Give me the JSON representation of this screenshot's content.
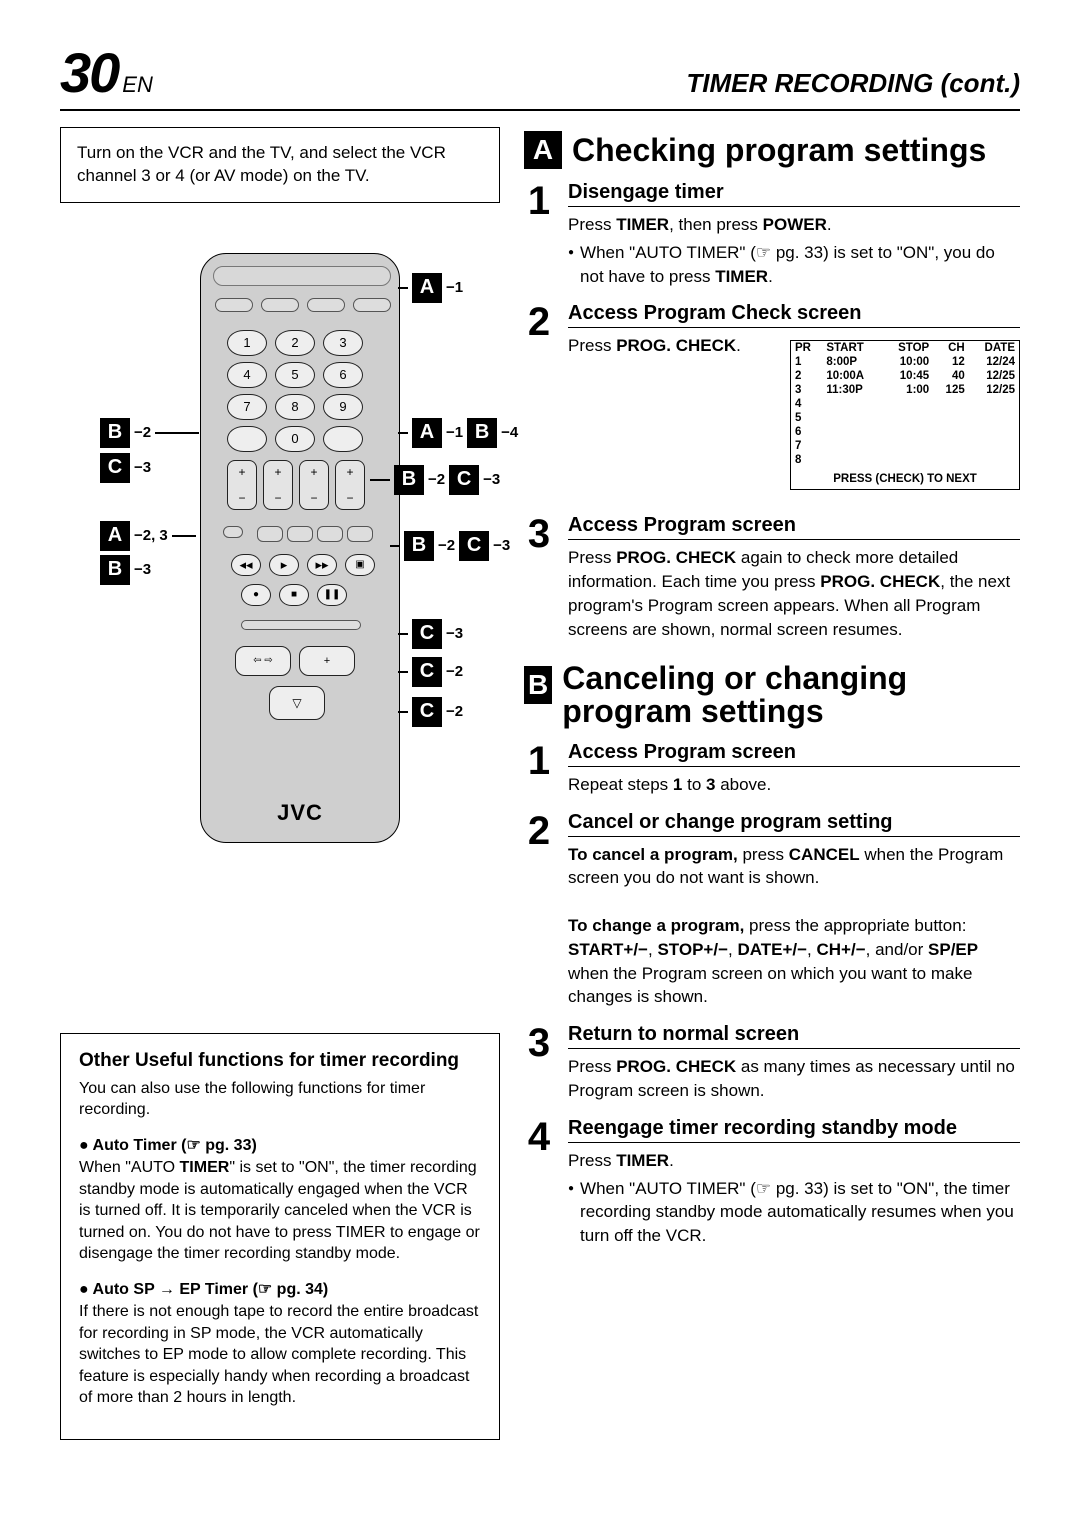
{
  "header": {
    "page_num": "30",
    "page_suffix": "EN",
    "section_title": "TIMER RECORDING (cont.)"
  },
  "intro_box": "Turn on the VCR and the TV, and select the VCR channel 3 or 4 (or AV mode) on the TV.",
  "remote": {
    "brand": "JVC",
    "callouts_left": [
      {
        "letter": "B",
        "sub": "−2"
      },
      {
        "letter": "C",
        "sub": "−3"
      },
      {
        "letter": "A",
        "sub": "−2, 3"
      },
      {
        "letter": "B",
        "sub": "−3"
      }
    ],
    "callouts_right": [
      {
        "pairs": [
          [
            "A",
            "−1"
          ]
        ]
      },
      {
        "pairs": [
          [
            "A",
            "−1"
          ],
          [
            "B",
            "−4"
          ]
        ]
      },
      {
        "pairs": [
          [
            "B",
            "−2"
          ],
          [
            "C",
            "−3"
          ]
        ]
      },
      {
        "pairs": [
          [
            "B",
            "−2"
          ],
          [
            "C",
            "−3"
          ]
        ]
      },
      {
        "pairs": [
          [
            "C",
            "−3"
          ]
        ]
      },
      {
        "pairs": [
          [
            "C",
            "−2"
          ]
        ]
      },
      {
        "pairs": [
          [
            "C",
            "−2"
          ]
        ]
      }
    ]
  },
  "useful_box": {
    "title": "Other Useful functions for timer recording",
    "intro": "You can also use the following functions for timer recording.",
    "items": [
      {
        "title": "● Auto Timer (☞ pg. 33)",
        "body": "When \"AUTO TIMER\" is set to \"ON\", the timer recording standby mode is automatically engaged when the VCR is turned off. It is temporarily canceled when the VCR is turned on. You do not have to press TIMER to engage or disengage the timer recording standby mode."
      },
      {
        "title": "● Auto SP → EP Timer (☞ pg. 34)",
        "body": "If there is not enough tape to record the entire broadcast for recording in SP mode, the VCR automatically switches to EP mode to allow complete recording. This feature is especially handy when recording a broadcast of more than 2 hours in length."
      }
    ]
  },
  "sectionA": {
    "letter": "A",
    "title": "Checking program settings",
    "steps": [
      {
        "n": "1",
        "title": "Disengage timer",
        "text": "Press <b>TIMER</b>, then press <b>POWER</b>.",
        "bullet": "When \"AUTO TIMER\" (☞ pg. 33) is set to \"ON\", you do not have to press <b>TIMER</b>."
      },
      {
        "n": "2",
        "title": "Access Program Check screen",
        "text": "Press <b>PROG. CHECK</b>."
      },
      {
        "n": "3",
        "title": "Access Program screen",
        "text": "Press <b>PROG. CHECK</b> again to check more detailed information. Each time you press <b>PROG. CHECK</b>, the next program's Program screen appears. When all Program screens are shown, normal screen resumes."
      }
    ]
  },
  "prog_table": {
    "headers": [
      "PR",
      "START",
      "STOP",
      "CH",
      "DATE"
    ],
    "rows": [
      [
        "1",
        "8:00P",
        "10:00",
        "12",
        "12/24"
      ],
      [
        "2",
        "10:00A",
        "10:45",
        "40",
        "12/25"
      ],
      [
        "3",
        "11:30P",
        "1:00",
        "125",
        "12/25"
      ],
      [
        "4",
        "",
        "",
        "",
        ""
      ],
      [
        "5",
        "",
        "",
        "",
        ""
      ],
      [
        "6",
        "",
        "",
        "",
        ""
      ],
      [
        "7",
        "",
        "",
        "",
        ""
      ],
      [
        "8",
        "",
        "",
        "",
        ""
      ]
    ],
    "footer": "PRESS (CHECK) TO NEXT"
  },
  "sectionB": {
    "letter": "B",
    "title": "Canceling or changing program settings",
    "steps": [
      {
        "n": "1",
        "title": "Access Program screen",
        "text": "Repeat steps <b>1</b> to <b>3</b> above."
      },
      {
        "n": "2",
        "title": "Cancel or change program setting",
        "text": "<b>To cancel a program,</b> press <b>CANCEL</b> when the Program screen you do not want is shown.<br><br><b>To change a program,</b> press the appropriate button: <b>START+/−</b>, <b>STOP+/−</b>, <b>DATE+/−</b>, <b>CH+/−</b>, and/or <b>SP/EP</b> when the Program screen on which you want to make changes is shown."
      },
      {
        "n": "3",
        "title": "Return to normal screen",
        "text": "Press <b>PROG. CHECK</b> as many times as necessary until no Program screen is shown."
      },
      {
        "n": "4",
        "title": "Reengage timer recording standby mode",
        "text": "Press <b>TIMER</b>.",
        "bullet": "When \"AUTO TIMER\" (☞ pg. 33) is set to \"ON\", the timer recording standby mode automatically resumes when you turn off the VCR."
      }
    ]
  }
}
